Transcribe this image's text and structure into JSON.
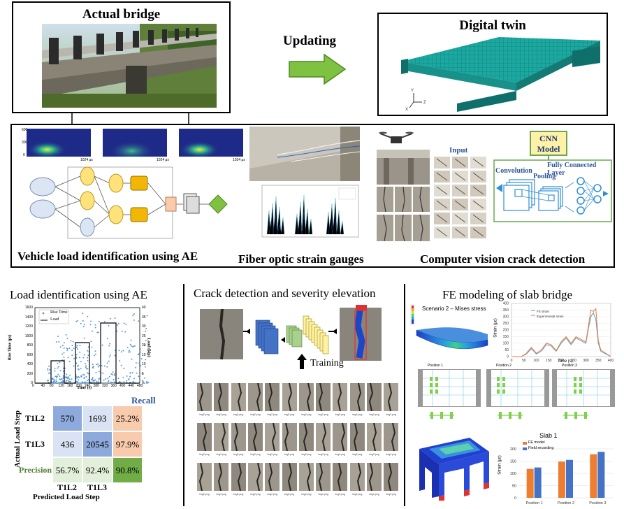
{
  "top": {
    "actual_bridge_title": "Actual bridge",
    "updating_label": "Updating",
    "digital_twin_title": "Digital twin"
  },
  "middle": {
    "ae_caption": "Vehicle load identification using AE",
    "fiber_caption": "Fiber optic strain gauges",
    "cv_caption": "Computer vision crack detection",
    "cnn_model_label": "CNN\nModel",
    "input_label": "Input",
    "convolution_label": "Convolution",
    "pooling_label": "Pooling",
    "fc_label": "Fully Connected Layer"
  },
  "bottom": {
    "load_title": "Load identification  using AE",
    "crack_title": "Crack detection and severity elevation",
    "fe_title": "FE modeling of slab bridge",
    "training_label": "Training",
    "scenario_label": "Scenario 2 – Mises stress",
    "positions": [
      "Position 1",
      "Position 2",
      "Position 3"
    ],
    "slab_title": "Slab 1"
  },
  "ae_chart": {
    "legend": [
      "Rise Time",
      "Load"
    ],
    "xlabel": "Time (s)",
    "ylabel_left": "Rise Time (μs)",
    "ylabel_right": "Load (kip)",
    "x_ticks": [
      "0",
      "40",
      "80",
      "120",
      "160",
      "200",
      "240",
      "280",
      "320",
      "360",
      "400",
      "440",
      "480"
    ],
    "y_left_ticks": [
      "0",
      "200",
      "400",
      "600",
      "800",
      "1000",
      "1200",
      "1400",
      "1600"
    ],
    "y_right_ticks": [
      "0",
      "5",
      "10",
      "15",
      "20",
      "25",
      "30",
      "35",
      "40"
    ]
  },
  "confusion_matrix": {
    "recall_label": "Recall",
    "precision_label": "Precision",
    "actual_label": "Actual Load Step",
    "predicted_label": "Predicted Load Step",
    "row_labels": [
      "T1L2",
      "T1L3"
    ],
    "col_labels": [
      "T1L2",
      "T1L3"
    ],
    "rows": [
      [
        "570",
        "1693",
        "25.2%"
      ],
      [
        "436",
        "20545",
        "97.9%"
      ],
      [
        "56.7%",
        "92.4%",
        "90.8%"
      ]
    ]
  },
  "strain_chart": {
    "type": "line",
    "title": "",
    "xlabel": "Time (s)",
    "ylabel": "Strain (με)",
    "x_ticks": [
      "0",
      "50",
      "100",
      "150",
      "200",
      "250",
      "300",
      "350",
      "400"
    ],
    "y_ticks": [
      "0",
      "50",
      "100",
      "150",
      "200",
      "250",
      "300",
      "350",
      "400"
    ],
    "xlim": [
      0,
      400
    ],
    "ylim": [
      0,
      400
    ],
    "legend": [
      "FE strain",
      "Experimental strain"
    ],
    "series": [
      {
        "name": "FE strain",
        "color": "#5b9bd5",
        "x": [
          0,
          40,
          60,
          80,
          100,
          120,
          140,
          160,
          180,
          200,
          220,
          240,
          260,
          280,
          300,
          310,
          320,
          330,
          340,
          350,
          360,
          380,
          400
        ],
        "y": [
          0,
          0,
          20,
          60,
          20,
          40,
          90,
          80,
          40,
          100,
          140,
          90,
          140,
          120,
          100,
          210,
          300,
          330,
          280,
          100,
          40,
          20,
          0
        ]
      },
      {
        "name": "Experimental strain",
        "color": "#ed7d31",
        "x": [
          0,
          40,
          60,
          80,
          100,
          120,
          140,
          160,
          180,
          200,
          220,
          240,
          260,
          280,
          300,
          310,
          320,
          330,
          340,
          350,
          360,
          380,
          400
        ],
        "y": [
          0,
          0,
          25,
          70,
          25,
          50,
          100,
          90,
          45,
          110,
          150,
          100,
          150,
          130,
          110,
          230,
          350,
          340,
          360,
          120,
          50,
          25,
          0
        ]
      }
    ]
  },
  "slab_chart": {
    "type": "bar",
    "title": "Slab 1",
    "xlabel": "",
    "ylabel": "Strain (με)",
    "categories": [
      "Position 1",
      "Position 2",
      "Position 3"
    ],
    "ylim": [
      0,
      200
    ],
    "y_ticks": [
      "0",
      "50",
      "100",
      "150",
      "200"
    ],
    "series": [
      {
        "name": "FE model",
        "color": "#ed7d31",
        "values": [
          118,
          148,
          178
        ]
      },
      {
        "name": "Field recording",
        "color": "#4472c4",
        "values": [
          124,
          155,
          188
        ]
      }
    ],
    "legend_position": "top-left"
  },
  "spectrogram_ticks": {
    "x_last": [
      "1024 μs",
      "1024 μs",
      "1024 μs"
    ],
    "y": [
      "600",
      "300",
      "0"
    ]
  },
  "crack_grid_label": "img2.png",
  "colors": {
    "arrow_green": "#7fc241",
    "twin_teal": "#1aa8a0",
    "cnn_yellow": "#fff2a8",
    "nn_blue": "#2f8fd6",
    "cm_blue": "#8ea9db",
    "cm_lightblue": "#dae3f3",
    "cm_orange": "#f8cbad",
    "cm_green": "#a9d08e",
    "cm_lightgreen": "#e2efda",
    "cm_darkgreen": "#70ad47",
    "recall_blue": "#2f5597",
    "precision_green": "#548235"
  }
}
